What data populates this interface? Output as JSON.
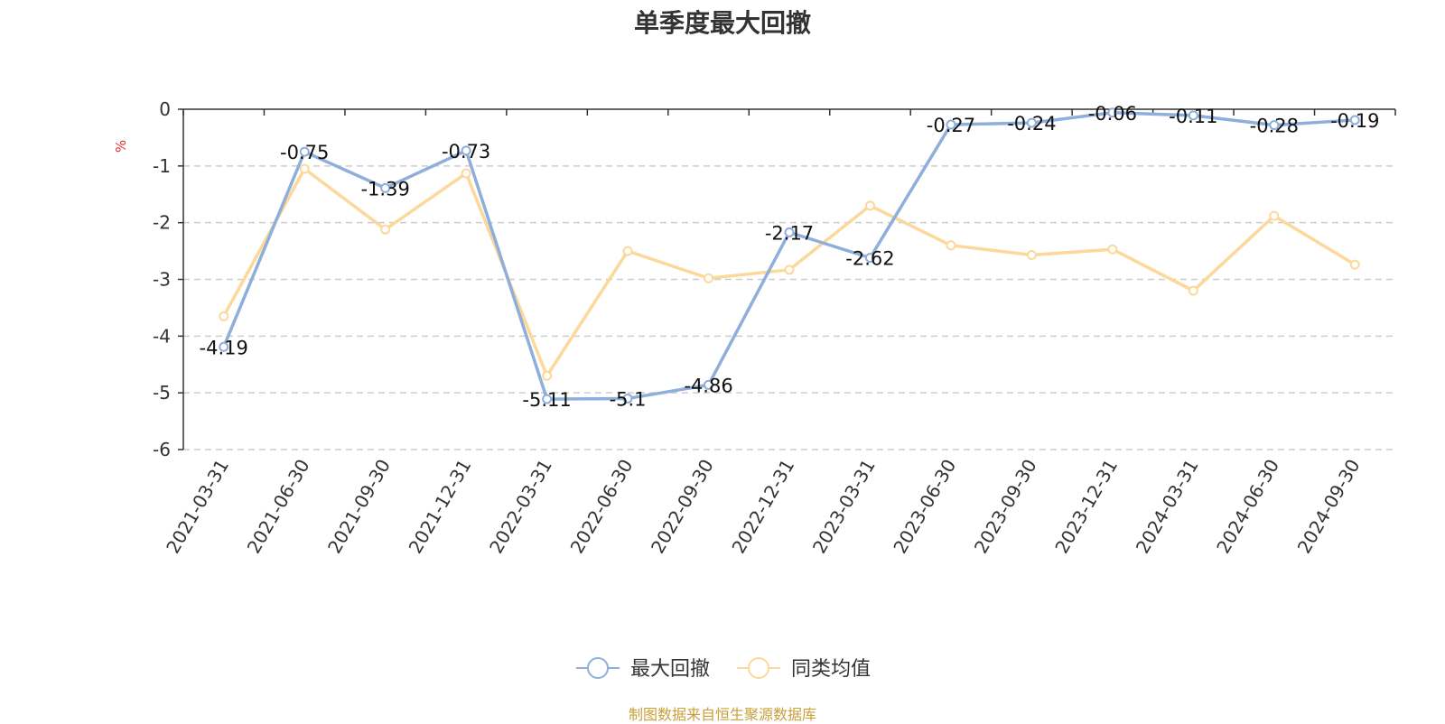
{
  "chart_data": {
    "type": "line",
    "title": "单季度最大回撤",
    "ylabel": "%",
    "ylim": [
      -6,
      0
    ],
    "yticks": [
      0,
      -1,
      -2,
      -3,
      -4,
      -5,
      -6
    ],
    "grid": true,
    "legend_position": "bottom",
    "categories": [
      "2021-03-31",
      "2021-06-30",
      "2021-09-30",
      "2021-12-31",
      "2022-03-31",
      "2022-06-30",
      "2022-09-30",
      "2022-12-31",
      "2023-03-31",
      "2023-06-30",
      "2023-09-30",
      "2023-12-31",
      "2024-03-31",
      "2024-06-30",
      "2024-09-30"
    ],
    "series": [
      {
        "name": "最大回撤",
        "color": "#8eaedb",
        "show_labels": true,
        "values": [
          -4.19,
          -0.75,
          -1.39,
          -0.73,
          -5.11,
          -5.1,
          -4.86,
          -2.17,
          -2.62,
          -0.27,
          -0.24,
          -0.06,
          -0.11,
          -0.28,
          -0.19
        ]
      },
      {
        "name": "同类均值",
        "color": "#fcd89a",
        "show_labels": false,
        "values": [
          -3.65,
          -1.05,
          -2.12,
          -1.13,
          -4.7,
          -2.5,
          -2.98,
          -2.83,
          -1.7,
          -2.4,
          -2.57,
          -2.47,
          -3.2,
          -1.88,
          -2.74
        ]
      }
    ]
  },
  "source_note": "制图数据来自恒生聚源数据库"
}
